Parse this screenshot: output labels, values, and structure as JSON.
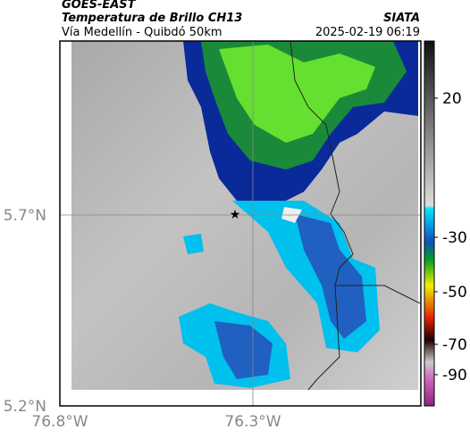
{
  "header": {
    "source": "GOES-EAST",
    "product": "Temperatura de Brillo CH13",
    "route": "Vía Medellín - Quibdó 50km",
    "agency": "SIATA",
    "timestamp": "2025-02-19 06:19"
  },
  "axes": {
    "lat_labels": [
      "5.7°N",
      "5.2°N"
    ],
    "lon_labels": [
      "76.8°W",
      "76.3°W"
    ]
  },
  "colorbar": {
    "ticks": [
      20,
      -30,
      -50,
      -70,
      -90
    ]
  }
}
